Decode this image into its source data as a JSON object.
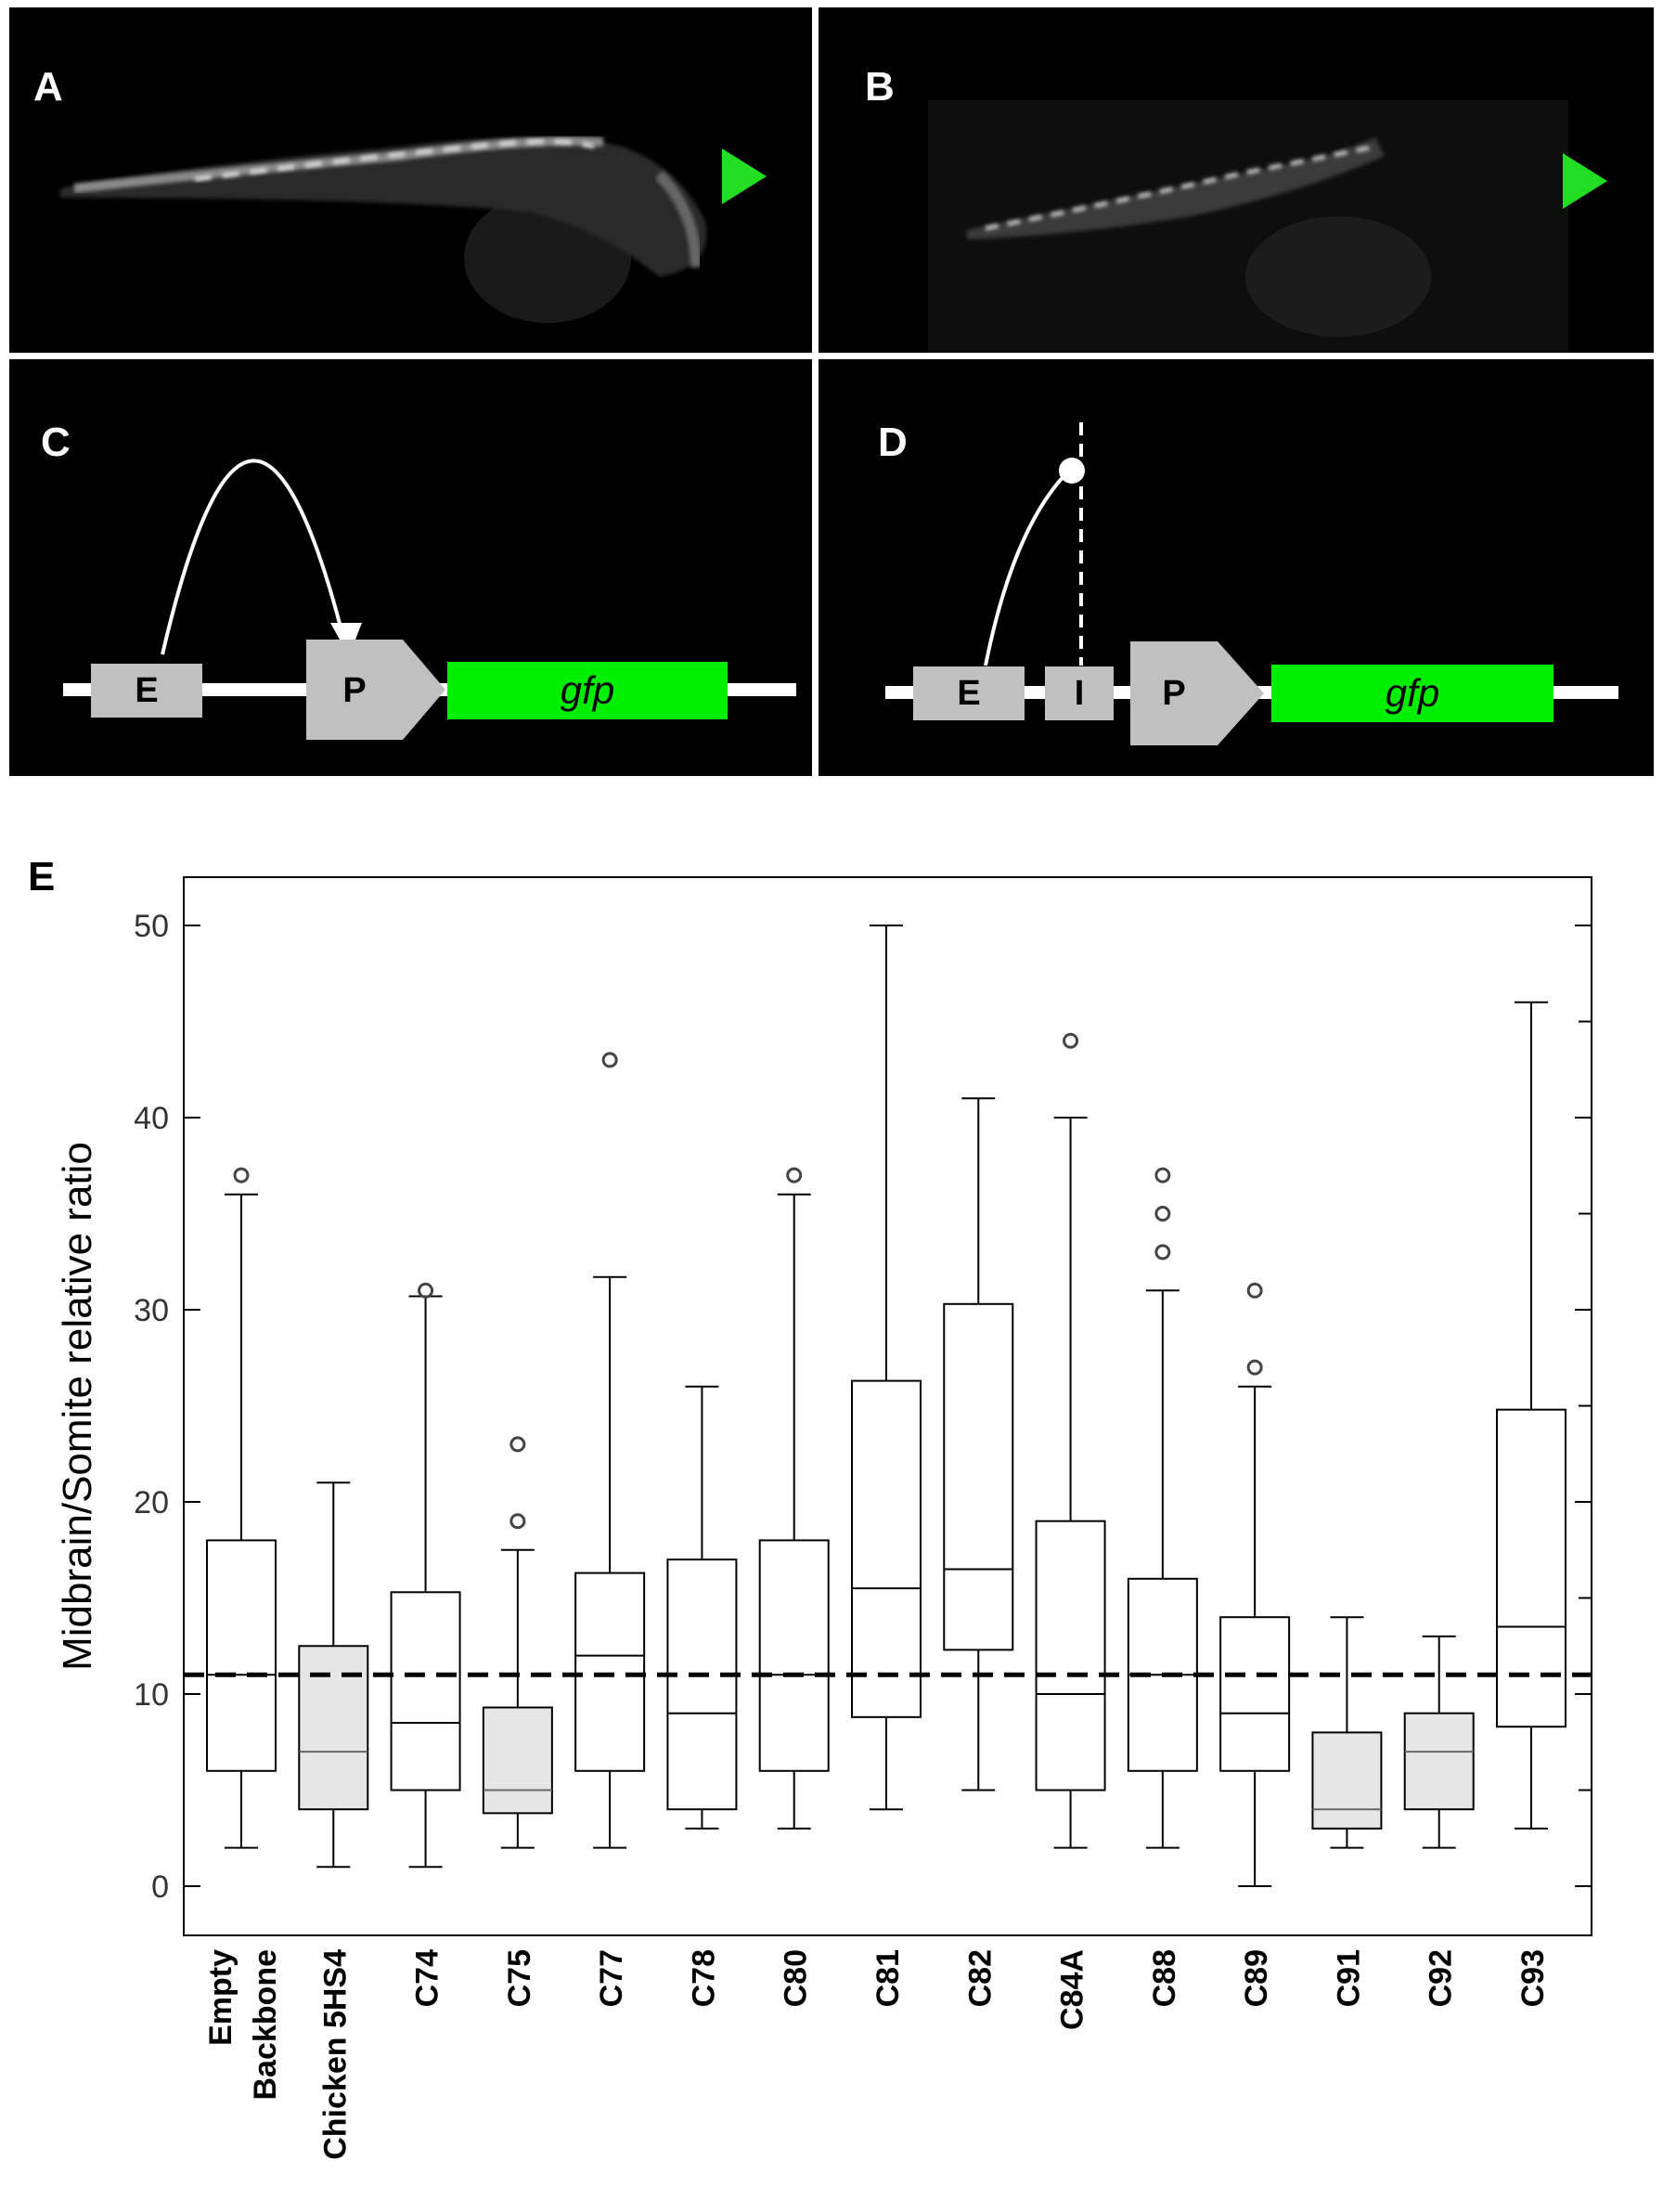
{
  "panels": {
    "A": {
      "label": "A"
    },
    "B": {
      "label": "B"
    },
    "C": {
      "label": "C",
      "enhancer": "E",
      "promoter": "P",
      "reporter": "gfp"
    },
    "D": {
      "label": "D",
      "enhancer": "E",
      "insulator": "I",
      "promoter": "P",
      "reporter": "gfp"
    },
    "E": {
      "label": "E"
    }
  },
  "colors": {
    "gfp": "#00ee00",
    "arrowhead": "#22dd22",
    "block": "#c0c0c0",
    "shaded_box": "#e6e6e6"
  },
  "chart_data": {
    "type": "box",
    "ylabel": "Midbrain/Somite relative ratio",
    "ylim": [
      -2.5,
      52.5
    ],
    "yticks": [
      0,
      10,
      20,
      30,
      40,
      50
    ],
    "reference_line": 11,
    "categories": [
      {
        "label_lines": [
          "Empty",
          "Backbone"
        ],
        "whisker_low": 2,
        "q1": 6,
        "median": 11,
        "q3": 18,
        "whisker_high": 36,
        "outliers": [
          37
        ],
        "shaded": false
      },
      {
        "label_lines": [
          "Chicken 5HS4"
        ],
        "whisker_low": 1,
        "q1": 4,
        "median": 7,
        "q3": 12.5,
        "whisker_high": 21,
        "outliers": [],
        "shaded": true
      },
      {
        "label_lines": [
          "C74"
        ],
        "whisker_low": 1,
        "q1": 5,
        "median": 8.5,
        "q3": 15.3,
        "whisker_high": 30.7,
        "outliers": [
          31
        ],
        "shaded": false
      },
      {
        "label_lines": [
          "C75"
        ],
        "whisker_low": 2,
        "q1": 3.8,
        "median": 5,
        "q3": 9.3,
        "whisker_high": 17.5,
        "outliers": [
          19,
          23
        ],
        "shaded": true
      },
      {
        "label_lines": [
          "C77"
        ],
        "whisker_low": 2,
        "q1": 6,
        "median": 12,
        "q3": 16.3,
        "whisker_high": 31.7,
        "outliers": [
          43
        ],
        "shaded": false
      },
      {
        "label_lines": [
          "C78"
        ],
        "whisker_low": 3,
        "q1": 4,
        "median": 9,
        "q3": 17,
        "whisker_high": 26,
        "outliers": [],
        "shaded": false
      },
      {
        "label_lines": [
          "C80"
        ],
        "whisker_low": 3,
        "q1": 6,
        "median": 11,
        "q3": 18,
        "whisker_high": 36,
        "outliers": [
          37
        ],
        "shaded": false
      },
      {
        "label_lines": [
          "C81"
        ],
        "whisker_low": 4,
        "q1": 8.8,
        "median": 15.5,
        "q3": 26.3,
        "whisker_high": 50,
        "outliers": [],
        "shaded": false
      },
      {
        "label_lines": [
          "C82"
        ],
        "whisker_low": 5,
        "q1": 12.3,
        "median": 16.5,
        "q3": 30.3,
        "whisker_high": 41,
        "outliers": [],
        "shaded": false
      },
      {
        "label_lines": [
          "C84A"
        ],
        "whisker_low": 2,
        "q1": 5,
        "median": 10,
        "q3": 19,
        "whisker_high": 40,
        "outliers": [
          44
        ],
        "shaded": false
      },
      {
        "label_lines": [
          "C88"
        ],
        "whisker_low": 2,
        "q1": 6,
        "median": 11,
        "q3": 16,
        "whisker_high": 31,
        "outliers": [
          33,
          35,
          37
        ],
        "shaded": false
      },
      {
        "label_lines": [
          "C89"
        ],
        "whisker_low": 0,
        "q1": 6,
        "median": 9,
        "q3": 14,
        "whisker_high": 26,
        "outliers": [
          27,
          31
        ],
        "shaded": false
      },
      {
        "label_lines": [
          "C91"
        ],
        "whisker_low": 2,
        "q1": 3,
        "median": 4,
        "q3": 8,
        "whisker_high": 14,
        "outliers": [],
        "shaded": true
      },
      {
        "label_lines": [
          "C92"
        ],
        "whisker_low": 2,
        "q1": 4,
        "median": 7,
        "q3": 9,
        "whisker_high": 13,
        "outliers": [],
        "shaded": true
      },
      {
        "label_lines": [
          "C93"
        ],
        "whisker_low": 3,
        "q1": 8.3,
        "median": 13.5,
        "q3": 24.8,
        "whisker_high": 46,
        "outliers": [],
        "shaded": false
      }
    ]
  }
}
